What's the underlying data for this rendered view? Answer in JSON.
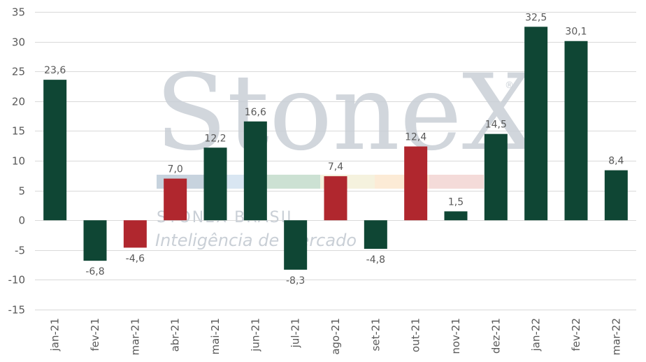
{
  "watermark": {
    "brand": "StoneX",
    "registered": "®",
    "line1": "STONEX BRASIL",
    "line2": "Inteligência de Mercado",
    "stripe_colors": [
      "#b9c8d6",
      "#cfe0ef",
      "#bfd9c8",
      "#f3efd6",
      "#fbe6cc",
      "#f1d2d0"
    ]
  },
  "chart_data": {
    "type": "bar",
    "categories": [
      "jan-21",
      "fev-21",
      "mar-21",
      "abr-21",
      "mai-21",
      "jun-21",
      "jul-21",
      "ago-21",
      "set-21",
      "out-21",
      "nov-21",
      "dez-21",
      "jan-22",
      "fev-22",
      "mar-22"
    ],
    "values": [
      23.6,
      -6.8,
      -4.6,
      7.0,
      12.2,
      16.6,
      -8.3,
      7.4,
      -4.8,
      12.4,
      1.5,
      14.5,
      32.5,
      30.1,
      8.4
    ],
    "value_labels": [
      "23,6",
      "-6,8",
      "-4,6",
      "7,0",
      "12,2",
      "16,6",
      "-8,3",
      "7,4",
      "-4,8",
      "12,4",
      "1,5",
      "14,5",
      "32,5",
      "30,1",
      "8,4"
    ],
    "bar_colors": [
      "#0f4634",
      "#0f4634",
      "#b0272e",
      "#b0272e",
      "#0f4634",
      "#0f4634",
      "#0f4634",
      "#b0272e",
      "#0f4634",
      "#b0272e",
      "#0f4634",
      "#0f4634",
      "#0f4634",
      "#0f4634",
      "#0f4634"
    ],
    "yticks": [
      35,
      30,
      25,
      20,
      15,
      10,
      5,
      0,
      -5,
      -10,
      -15
    ],
    "ytick_labels": [
      "35",
      "30",
      "25",
      "20",
      "15",
      "10",
      "5",
      "0",
      "-5",
      "-10",
      "-15"
    ],
    "ylim": [
      -15,
      35
    ],
    "grid": true,
    "title": "",
    "xlabel": "",
    "ylabel": ""
  }
}
